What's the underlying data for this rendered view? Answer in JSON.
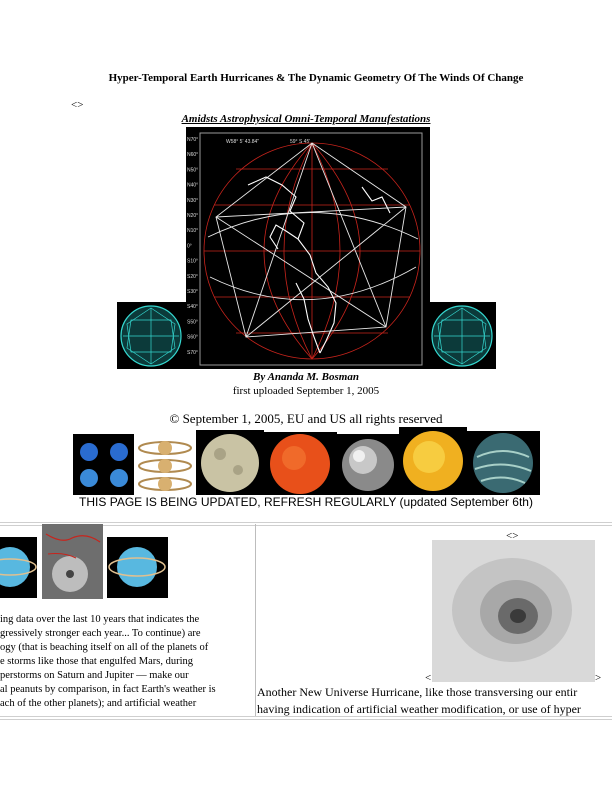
{
  "title": "Hyper-Temporal Earth Hurricanes & The Dynamic Geometry Of The Winds Of Change",
  "glyph_left": "<>",
  "subtitle": "Amidsts Astrophysical Omni-Temporal Manufestations",
  "globe_labels": {
    "coord_a": "W58° 5' 43.84\"",
    "coord_b": "59° S 45'",
    "lat_ticks": [
      "N70°",
      "N60°",
      "N50°",
      "N40°",
      "N30°",
      "N20°",
      "N10°",
      "0°",
      "S10°",
      "S20°",
      "S30°",
      "S40°",
      "S50°",
      "S60°",
      "S70°"
    ]
  },
  "byline": "By Ananda M. Bosman",
  "uploaded": "first uploaded September 1, 2005",
  "copyright": "© September 1, 2005, EU and US all rights reserved",
  "update_notice": "THIS PAGE IS BEING UPDATED, REFRESH REGULARLY (updated September 6th)",
  "right_column": {
    "glyph_top": "<>",
    "glyph_left": "<",
    "glyph_right": ">",
    "lines": [
      "Another New Universe Hurricane, like those transversing our entir",
      "having indication of artificial weather modification, or use of hyper"
    ]
  },
  "left_column": {
    "lines": [
      "ing data over the last 10 years that indicates the",
      "gressively stronger each year... To continue) are",
      "ogy (that is beaching itself on all of the planets of",
      "e storms like those that engulfed Mars, during",
      "perstorms on Saturn and Jupiter — make our",
      "al peanuts by comparison, in fact Earth's weather is",
      "ach of the other planets); and artificial weather"
    ]
  },
  "colors": {
    "grid_red": "#c8241c",
    "coastline": "#ffffff",
    "ico_cyan": "#35d8d0",
    "mars_orange": "#e8501a",
    "io_yellow": "#f0b020",
    "uranus_blue": "#58b8e0"
  }
}
